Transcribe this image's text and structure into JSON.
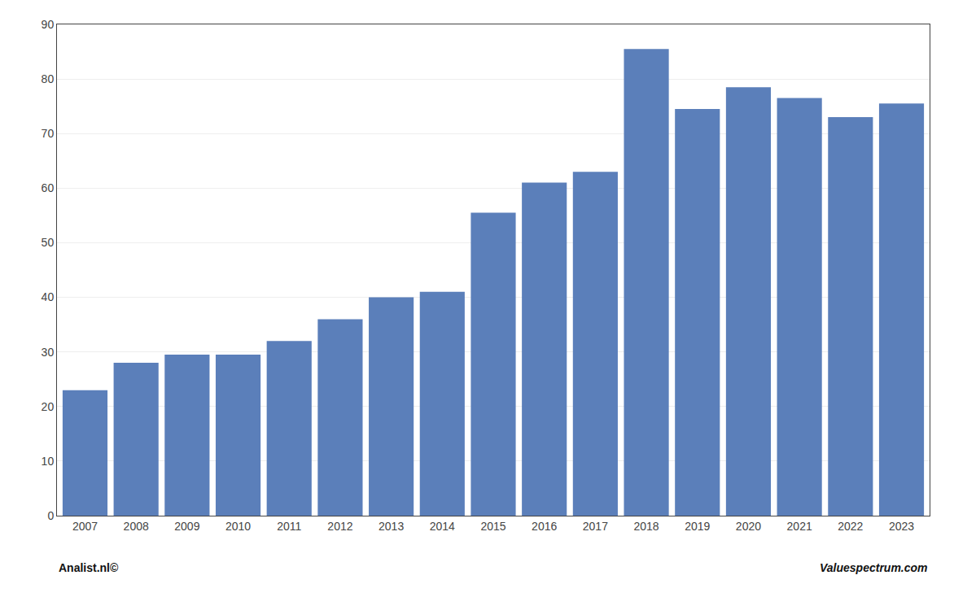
{
  "chart_data": {
    "type": "bar",
    "categories": [
      "2007",
      "2008",
      "2009",
      "2010",
      "2011",
      "2012",
      "2013",
      "2014",
      "2015",
      "2016",
      "2017",
      "2018",
      "2019",
      "2020",
      "2021",
      "2022",
      "2023"
    ],
    "values": [
      23.0,
      28.0,
      29.5,
      29.5,
      32.0,
      36.0,
      40.0,
      41.0,
      55.5,
      61.0,
      63.0,
      85.5,
      74.5,
      78.5,
      76.5,
      73.0,
      75.5
    ],
    "color": "#5b7fba",
    "ylim": [
      0,
      90
    ],
    "yticks": [
      0,
      10,
      20,
      30,
      40,
      50,
      60,
      70,
      80,
      90
    ],
    "grid": true,
    "annotations": [
      "Analist.nl©",
      "Valuespectrum.com"
    ]
  }
}
